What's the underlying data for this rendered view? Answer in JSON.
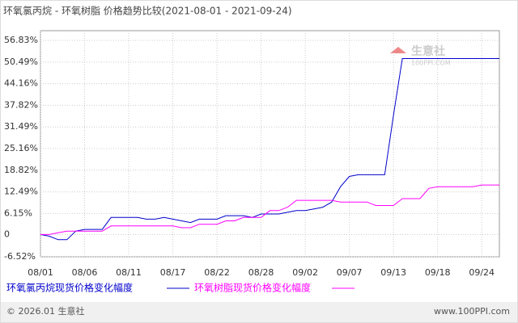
{
  "chart_data": {
    "type": "line",
    "title": "环氧氯丙烷 - 环氧树脂 价格趋势比较(2021-08-01 - 2021-09-24)",
    "categories": [
      "08/01",
      null,
      null,
      null,
      null,
      "08/06",
      null,
      null,
      null,
      null,
      "08/11",
      null,
      null,
      null,
      null,
      "08/17",
      null,
      null,
      null,
      null,
      "08/22",
      null,
      null,
      null,
      null,
      "08/28",
      null,
      null,
      null,
      null,
      "09/02",
      null,
      null,
      null,
      null,
      "09/07",
      null,
      null,
      null,
      null,
      "09/13",
      null,
      null,
      null,
      null,
      "09/18",
      null,
      null,
      null,
      null,
      "09/24",
      null,
      null
    ],
    "series": [
      {
        "name": "环氧氯丙烷现货价格变化幅度",
        "color": "#0000cc",
        "values": [
          0,
          -0.5,
          -1.5,
          -1.5,
          1,
          1.5,
          1.5,
          1.5,
          5,
          5,
          5,
          5,
          4.5,
          4.5,
          5,
          4.5,
          4,
          3.5,
          4.5,
          4.5,
          4.5,
          5.5,
          5.5,
          5.5,
          5,
          6,
          6,
          6,
          6.5,
          7,
          7,
          7.5,
          8,
          9.5,
          14,
          17,
          17.5,
          17.5,
          17.5,
          17.5,
          35,
          51.5,
          51.5,
          51.5,
          51.5,
          51.5,
          51.5,
          51.5,
          51.5,
          51.5,
          51.5,
          51.5,
          51.5
        ]
      },
      {
        "name": "环氧树脂现货价格变化幅度",
        "color": "#ff00ff",
        "values": [
          0,
          0,
          0.5,
          1,
          1,
          1,
          1,
          1,
          2.5,
          2.5,
          2.5,
          2.5,
          2.5,
          2.5,
          2.5,
          2.5,
          2,
          2,
          3,
          3,
          3,
          4,
          4,
          5,
          5,
          5,
          7,
          7,
          8,
          10,
          10,
          10,
          10,
          10,
          9.5,
          9.5,
          9.5,
          9.5,
          8.5,
          8.5,
          8.5,
          10.5,
          10.5,
          10.5,
          13.5,
          14,
          14,
          14,
          14,
          14,
          14.5,
          14.5,
          14.5
        ]
      }
    ],
    "ylim": [
      -6.52,
      56.83
    ],
    "yticks": [
      {
        "value": -6.52,
        "label": "-6.52%"
      },
      0,
      {
        "value": 6.15,
        "label": "6.15%"
      },
      {
        "value": 12.49,
        "label": "12.49%"
      },
      {
        "value": 18.82,
        "label": "18.82%"
      },
      {
        "value": 25.16,
        "label": "25.16%"
      },
      {
        "value": 31.49,
        "label": "31.49%"
      },
      {
        "value": 37.82,
        "label": "37.82%"
      },
      {
        "value": 44.16,
        "label": "44.16%"
      },
      {
        "value": 50.49,
        "label": "50.49%"
      },
      {
        "value": 56.83,
        "label": "56.83%"
      }
    ],
    "grid": true,
    "watermark": "生意社",
    "watermark_url": "100PPI.COM",
    "footer_left": "© 2026.01 生意社",
    "footer_right": "www.100PPI.com"
  }
}
